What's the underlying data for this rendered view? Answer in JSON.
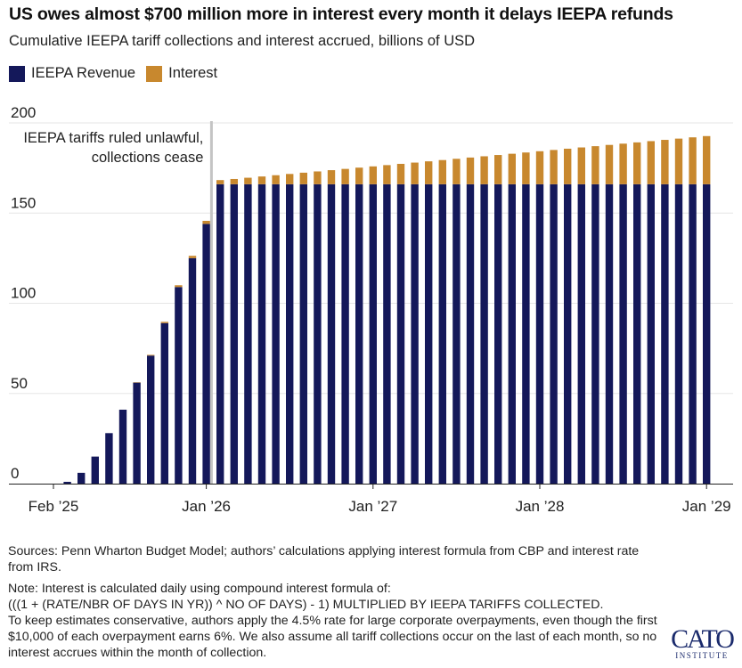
{
  "title": "US owes almost $700 million more in interest every month it delays IEEPA refunds",
  "subtitle": "Cumulative IEEPA tariff collections and interest accrued, billions of USD",
  "colors": {
    "revenue": "#14185a",
    "interest": "#c8882e",
    "grid": "#e6e6e6",
    "annotation_line": "#c4c4c4"
  },
  "chart_data": {
    "type": "bar",
    "stacked": true,
    "title": "",
    "xlabel": "",
    "ylabel": "",
    "ylim": [
      0,
      200
    ],
    "yticks": [
      0,
      50,
      100,
      150,
      200
    ],
    "grid": "horizontal",
    "legend_placement": "top-left",
    "x_ticks": [
      {
        "label": "Feb ’25",
        "category": "Feb 2025"
      },
      {
        "label": "Jan ’26",
        "category": "Jan 2026"
      },
      {
        "label": "Jan ’27",
        "category": "Jan 2027"
      },
      {
        "label": "Jan ’28",
        "category": "Jan 2028"
      },
      {
        "label": "Jan ’29",
        "category": "Jan 2029"
      }
    ],
    "annotation": {
      "lines": [
        "IEEPA tariffs ruled unlawful,",
        "collections cease"
      ],
      "after_category": "Jan 2026"
    },
    "categories": [
      "Feb 2025",
      "Mar 2025",
      "Apr 2025",
      "May 2025",
      "Jun 2025",
      "Jul 2025",
      "Aug 2025",
      "Sep 2025",
      "Oct 2025",
      "Nov 2025",
      "Dec 2025",
      "Jan 2026",
      "Feb 2026",
      "Mar 2026",
      "Apr 2026",
      "May 2026",
      "Jun 2026",
      "Jul 2026",
      "Aug 2026",
      "Sep 2026",
      "Oct 2026",
      "Nov 2026",
      "Dec 2026",
      "Jan 2027",
      "Feb 2027",
      "Mar 2027",
      "Apr 2027",
      "May 2027",
      "Jun 2027",
      "Jul 2027",
      "Aug 2027",
      "Sep 2027",
      "Oct 2027",
      "Nov 2027",
      "Dec 2027",
      "Jan 2028",
      "Feb 2028",
      "Mar 2028",
      "Apr 2028",
      "May 2028",
      "Jun 2028",
      "Jul 2028",
      "Aug 2028",
      "Sep 2028",
      "Oct 2028",
      "Nov 2028",
      "Dec 2028",
      "Jan 2029"
    ],
    "series": [
      {
        "name": "IEEPA Revenue",
        "values": [
          0,
          1,
          6,
          15,
          28,
          41,
          56,
          71,
          89,
          109,
          125,
          144,
          166,
          166,
          166,
          166,
          166,
          166,
          166,
          166,
          166,
          166,
          166,
          166,
          166,
          166,
          166,
          166,
          166,
          166,
          166,
          166,
          166,
          166,
          166,
          166,
          166,
          166,
          166,
          166,
          166,
          166,
          166,
          166,
          166,
          166,
          166,
          166
        ]
      },
      {
        "name": "Interest",
        "values": [
          0,
          0,
          0,
          0,
          0,
          0,
          0.2,
          0.4,
          0.7,
          1.0,
          1.3,
          1.7,
          2.3,
          2.9,
          3.6,
          4.3,
          5.0,
          5.7,
          6.4,
          7.1,
          7.8,
          8.5,
          9.2,
          9.9,
          10.6,
          11.3,
          12.0,
          12.7,
          13.4,
          14.1,
          14.8,
          15.5,
          16.2,
          16.9,
          17.6,
          18.3,
          19.0,
          19.7,
          20.4,
          21.1,
          21.8,
          22.5,
          23.2,
          23.9,
          24.6,
          25.3,
          26.0,
          26.7
        ]
      }
    ]
  },
  "notes": {
    "sources": "Sources: Penn Wharton Budget Model; authors’ calculations applying interest formula from CBP and interest rate from IRS.",
    "note_lines": [
      "Note: Interest is calculated daily using compound interest formula of:",
      "(((1 + (RATE/NBR OF DAYS IN YR)) ^ NO OF DAYS) - 1) MULTIPLIED BY IEEPA TARIFFS COLLECTED.",
      "To keep estimates conservative, authors apply the 4.5% rate for large corporate overpayments, even though the first $10,000 of each overpayment earns 6%. We also assume all tariff collections occur on the last of each month, so no interest accrues within the month of collection."
    ]
  },
  "logo": {
    "text": "CATO",
    "subtext": "INSTITUTE"
  }
}
